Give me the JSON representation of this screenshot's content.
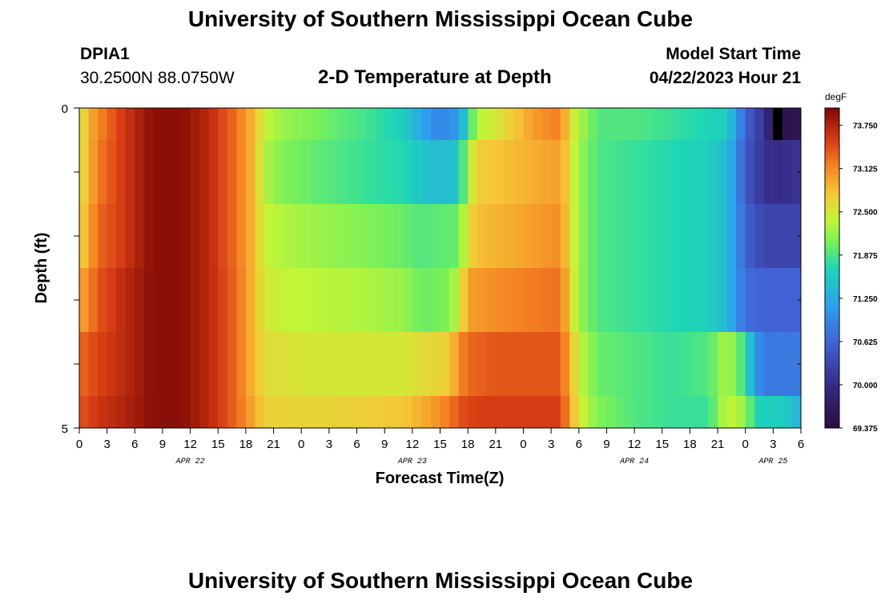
{
  "page": {
    "title": "University of Southern Mississippi Ocean Cube",
    "footer_title": "University of Southern Mississippi Ocean Cube",
    "station": "DPIA1",
    "coords": "30.2500N  88.0750W",
    "plot_title": "2-D Temperature at Depth",
    "model_start_label": "Model Start Time",
    "model_start_value": "04/22/2023 Hour 21"
  },
  "chart_data": {
    "type": "heatmap",
    "title": "2-D Temperature at Depth",
    "xlabel": "Forecast Time(Z)",
    "ylabel": "Depth (ft)",
    "y_range": [
      0,
      5
    ],
    "y_tick_labels": [
      "0",
      "5"
    ],
    "x_hours_total": 78,
    "x_tick_labels": [
      "0",
      "3",
      "6",
      "9",
      "12",
      "15",
      "18",
      "21",
      "0",
      "3",
      "6",
      "9",
      "12",
      "15",
      "18",
      "21",
      "0",
      "3",
      "6",
      "9",
      "12",
      "15",
      "18",
      "21",
      "0",
      "3",
      "6"
    ],
    "date_labels": [
      {
        "label": "APR 22",
        "hour": 12
      },
      {
        "label": "APR 23",
        "hour": 36
      },
      {
        "label": "APR 24",
        "hour": 60
      },
      {
        "label": "APR 25",
        "hour": 75
      }
    ],
    "colorbar": {
      "unit": "degF",
      "min": 69.375,
      "max": 74.0,
      "tick_labels": [
        "73.750",
        "73.125",
        "72.500",
        "71.875",
        "71.250",
        "70.625",
        "70.000",
        "69.375"
      ],
      "tick_values": [
        73.75,
        73.125,
        72.5,
        71.875,
        71.25,
        70.625,
        70.0,
        69.375
      ]
    },
    "layers": [
      {
        "depth_from": 0,
        "depth_to": 0.5,
        "keyframes": [
          [
            0,
            72.4
          ],
          [
            1,
            72.9
          ],
          [
            3,
            73.3
          ],
          [
            5,
            73.6
          ],
          [
            8,
            73.95
          ],
          [
            11,
            73.95
          ],
          [
            14,
            73.7
          ],
          [
            17,
            73.25
          ],
          [
            19,
            72.8
          ],
          [
            20,
            72.4
          ],
          [
            22,
            72.2
          ],
          [
            27,
            72.0
          ],
          [
            31,
            71.85
          ],
          [
            35,
            71.6
          ],
          [
            37,
            71.2
          ],
          [
            39,
            70.9
          ],
          [
            41,
            71.1
          ],
          [
            42,
            71.7
          ],
          [
            43,
            72.3
          ],
          [
            46,
            72.6
          ],
          [
            49,
            73.0
          ],
          [
            52,
            73.2
          ],
          [
            53,
            72.6
          ],
          [
            54,
            72.3
          ],
          [
            56,
            71.9
          ],
          [
            60,
            71.9
          ],
          [
            64,
            71.8
          ],
          [
            70,
            71.6
          ],
          [
            71,
            71.1
          ],
          [
            72,
            70.6
          ],
          [
            74,
            70.1
          ],
          [
            75,
            69.6
          ],
          [
            76,
            69.5
          ],
          [
            78,
            69.6
          ]
        ]
      },
      {
        "depth_from": 0.5,
        "depth_to": 1.5,
        "keyframes": [
          [
            0,
            72.5
          ],
          [
            2,
            73.2
          ],
          [
            5,
            73.6
          ],
          [
            8,
            73.95
          ],
          [
            11,
            73.95
          ],
          [
            14,
            73.7
          ],
          [
            17,
            73.25
          ],
          [
            19,
            72.8
          ],
          [
            20,
            72.3
          ],
          [
            22,
            72.1
          ],
          [
            26,
            71.95
          ],
          [
            31,
            71.8
          ],
          [
            35,
            71.7
          ],
          [
            37,
            71.5
          ],
          [
            39,
            71.4
          ],
          [
            41,
            71.5
          ],
          [
            42,
            72.3
          ],
          [
            43,
            72.7
          ],
          [
            46,
            72.8
          ],
          [
            49,
            72.9
          ],
          [
            52,
            73.0
          ],
          [
            53,
            72.6
          ],
          [
            54,
            72.2
          ],
          [
            56,
            71.9
          ],
          [
            60,
            71.8
          ],
          [
            64,
            71.7
          ],
          [
            68,
            71.6
          ],
          [
            70,
            71.4
          ],
          [
            71,
            71.0
          ],
          [
            72,
            70.5
          ],
          [
            74,
            70.1
          ],
          [
            75,
            70.0
          ],
          [
            78,
            70.1
          ]
        ]
      },
      {
        "depth_from": 1.5,
        "depth_to": 2.5,
        "keyframes": [
          [
            0,
            72.6
          ],
          [
            2,
            73.3
          ],
          [
            5,
            73.6
          ],
          [
            8,
            73.95
          ],
          [
            11,
            73.95
          ],
          [
            14,
            73.7
          ],
          [
            17,
            73.25
          ],
          [
            19,
            72.8
          ],
          [
            20,
            72.4
          ],
          [
            22,
            72.3
          ],
          [
            26,
            72.2
          ],
          [
            31,
            72.1
          ],
          [
            35,
            72.0
          ],
          [
            37,
            71.9
          ],
          [
            41,
            72.0
          ],
          [
            42,
            72.6
          ],
          [
            43,
            72.8
          ],
          [
            46,
            72.9
          ],
          [
            49,
            73.0
          ],
          [
            52,
            73.1
          ],
          [
            53,
            72.6
          ],
          [
            54,
            72.2
          ],
          [
            56,
            71.9
          ],
          [
            60,
            71.8
          ],
          [
            64,
            71.7
          ],
          [
            68,
            71.6
          ],
          [
            70,
            71.4
          ],
          [
            71,
            71.0
          ],
          [
            72,
            70.6
          ],
          [
            74,
            70.3
          ],
          [
            78,
            70.3
          ]
        ]
      },
      {
        "depth_from": 2.5,
        "depth_to": 3.5,
        "keyframes": [
          [
            0,
            72.9
          ],
          [
            2,
            73.4
          ],
          [
            5,
            73.7
          ],
          [
            8,
            73.95
          ],
          [
            11,
            73.95
          ],
          [
            14,
            73.7
          ],
          [
            17,
            73.3
          ],
          [
            19,
            72.8
          ],
          [
            20,
            72.5
          ],
          [
            22,
            72.4
          ],
          [
            26,
            72.35
          ],
          [
            31,
            72.3
          ],
          [
            35,
            72.2
          ],
          [
            37,
            72.0
          ],
          [
            40,
            72.1
          ],
          [
            41,
            72.4
          ],
          [
            42,
            73.0
          ],
          [
            45,
            73.1
          ],
          [
            49,
            73.2
          ],
          [
            52,
            73.25
          ],
          [
            53,
            72.7
          ],
          [
            54,
            72.2
          ],
          [
            56,
            71.9
          ],
          [
            60,
            71.8
          ],
          [
            64,
            71.7
          ],
          [
            68,
            71.6
          ],
          [
            70,
            71.4
          ],
          [
            71,
            71.0
          ],
          [
            72,
            70.7
          ],
          [
            74,
            70.6
          ],
          [
            78,
            70.6
          ]
        ]
      },
      {
        "depth_from": 3.5,
        "depth_to": 4.5,
        "keyframes": [
          [
            0,
            73.3
          ],
          [
            2,
            73.5
          ],
          [
            5,
            73.7
          ],
          [
            8,
            73.95
          ],
          [
            11,
            73.95
          ],
          [
            14,
            73.7
          ],
          [
            17,
            73.3
          ],
          [
            19,
            72.8
          ],
          [
            20,
            72.6
          ],
          [
            22,
            72.55
          ],
          [
            26,
            72.5
          ],
          [
            31,
            72.5
          ],
          [
            35,
            72.5
          ],
          [
            37,
            72.6
          ],
          [
            40,
            72.7
          ],
          [
            41,
            73.1
          ],
          [
            42,
            73.3
          ],
          [
            45,
            73.4
          ],
          [
            49,
            73.4
          ],
          [
            52,
            73.4
          ],
          [
            53,
            72.9
          ],
          [
            54,
            72.4
          ],
          [
            56,
            72.0
          ],
          [
            60,
            71.9
          ],
          [
            64,
            71.8
          ],
          [
            68,
            71.9
          ],
          [
            69,
            72.1
          ],
          [
            70,
            72.3
          ],
          [
            72,
            71.8
          ],
          [
            73,
            71.1
          ],
          [
            74,
            70.8
          ],
          [
            78,
            70.8
          ]
        ]
      },
      {
        "depth_from": 4.5,
        "depth_to": 5.0,
        "keyframes": [
          [
            0,
            73.4
          ],
          [
            2,
            73.6
          ],
          [
            5,
            73.75
          ],
          [
            8,
            73.95
          ],
          [
            11,
            73.95
          ],
          [
            14,
            73.7
          ],
          [
            17,
            73.3
          ],
          [
            19,
            72.9
          ],
          [
            20,
            72.7
          ],
          [
            22,
            72.65
          ],
          [
            26,
            72.65
          ],
          [
            31,
            72.7
          ],
          [
            35,
            72.75
          ],
          [
            37,
            72.9
          ],
          [
            40,
            73.2
          ],
          [
            41,
            73.4
          ],
          [
            42,
            73.5
          ],
          [
            45,
            73.55
          ],
          [
            49,
            73.55
          ],
          [
            52,
            73.55
          ],
          [
            53,
            73.0
          ],
          [
            54,
            72.5
          ],
          [
            56,
            72.1
          ],
          [
            60,
            71.9
          ],
          [
            64,
            71.8
          ],
          [
            68,
            71.8
          ],
          [
            69,
            72.1
          ],
          [
            70,
            72.4
          ],
          [
            72,
            72.2
          ],
          [
            73,
            71.7
          ],
          [
            74,
            71.6
          ],
          [
            76,
            71.6
          ],
          [
            78,
            71.3
          ]
        ]
      }
    ],
    "anomalies": [
      {
        "hour": 75,
        "depth_from": 0,
        "depth_to": 0.5,
        "value": 69.0
      }
    ]
  }
}
